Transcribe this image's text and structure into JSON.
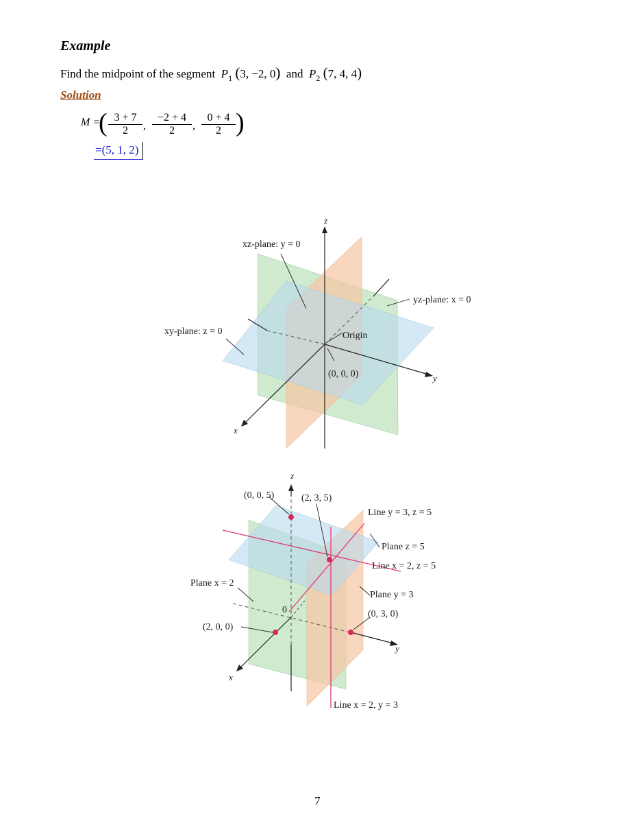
{
  "heading": "Example",
  "problem": {
    "text": "Find the midpoint of the segment",
    "p1_name": "P",
    "p1_sub": "1",
    "p1_coords": "3,  −2,  0",
    "connector": "and",
    "p2_name": "P",
    "p2_sub": "2",
    "p2_coords": "7,  4,  4"
  },
  "solution_label": "Solution",
  "work": {
    "lhs": "M =",
    "fractions": [
      {
        "num": "3 + 7",
        "den": "2"
      },
      {
        "num": "−2 + 4",
        "den": "2"
      },
      {
        "num": "0 + 4",
        "den": "2"
      }
    ],
    "result": "=(5,  1,  2)"
  },
  "figure1": {
    "axis_x": "x",
    "axis_y": "y",
    "axis_z": "z",
    "label_xz_plane": "xz-plane: y = 0",
    "label_yz_plane": "yz-plane: x = 0",
    "label_xy_plane": "xy-plane: z = 0",
    "label_origin": "Origin",
    "label_origin_coords": "(0, 0, 0)"
  },
  "figure2": {
    "axis_x": "x",
    "axis_y": "y",
    "axis_z": "z",
    "label_005": "(0, 0, 5)",
    "label_235": "(2, 3, 5)",
    "label_line_y3z5": "Line y = 3, z = 5",
    "label_plane_z5": "Plane z = 5",
    "label_line_x2z5": "Line x = 2, z = 5",
    "label_plane_x2": "Plane x = 2",
    "label_plane_y3": "Plane y = 3",
    "label_zero": "0",
    "label_030": "(0, 3, 0)",
    "label_200": "(2, 0, 0)",
    "label_line_x2y3": "Line x = 2, y = 3"
  },
  "colors": {
    "solution": "#9a4a12",
    "result": "#1a1adc",
    "plane_green": "#b6dfb4",
    "plane_orange": "#f6c6a2",
    "plane_blue": "#b9d9ee",
    "point_red": "#d8285a",
    "line_pink": "#e03a7a"
  },
  "page_number": "7"
}
